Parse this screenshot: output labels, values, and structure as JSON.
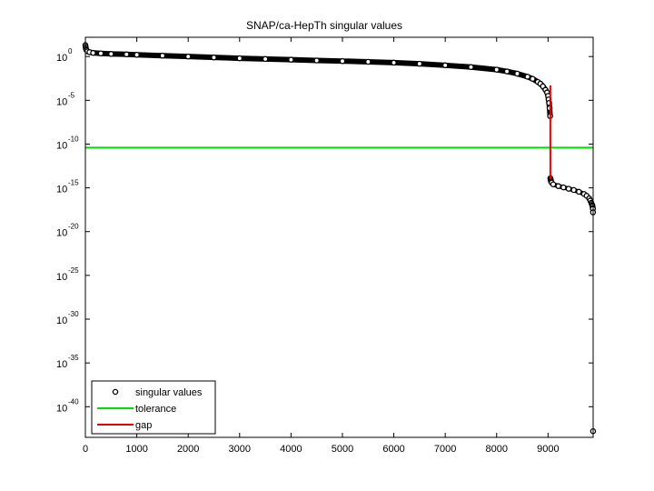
{
  "chart_data": {
    "type": "scatter",
    "title": "SNAP/ca-HepTh singular values",
    "xlabel": "",
    "ylabel": "",
    "y_scale": "log",
    "xlim": [
      0,
      9877
    ],
    "ylim_log10": [
      -43.5,
      2.2
    ],
    "x_ticks": [
      0,
      1000,
      2000,
      3000,
      4000,
      5000,
      6000,
      7000,
      8000,
      9000
    ],
    "y_ticks": [
      {
        "exp": 0,
        "base": "10",
        "label": "0"
      },
      {
        "exp": -5,
        "base": "10",
        "label": "-5"
      },
      {
        "exp": -10,
        "base": "10",
        "label": "-10"
      },
      {
        "exp": -15,
        "base": "10",
        "label": "-15"
      },
      {
        "exp": -20,
        "base": "10",
        "label": "-20"
      },
      {
        "exp": -25,
        "base": "10",
        "label": "-25"
      },
      {
        "exp": -30,
        "base": "10",
        "label": "-30"
      },
      {
        "exp": -35,
        "base": "10",
        "label": "-35"
      },
      {
        "exp": -40,
        "base": "10",
        "label": "-40"
      }
    ],
    "grid": false,
    "legend": {
      "position": "bottom-left",
      "entries": [
        {
          "label": "singular values",
          "marker": "circle",
          "color": "#000000"
        },
        {
          "label": "tolerance",
          "line": true,
          "color": "#00dd00"
        },
        {
          "label": "gap",
          "line": true,
          "color": "#ee0000"
        }
      ]
    },
    "series": [
      {
        "name": "singular values",
        "kind": "markers",
        "color": "#000000",
        "x": [
          0,
          5,
          10,
          20,
          40,
          80,
          150,
          300,
          500,
          800,
          1000,
          1500,
          2000,
          2500,
          3000,
          3500,
          4000,
          4500,
          5000,
          5500,
          6000,
          6500,
          7000,
          7500,
          8000,
          8200,
          8400,
          8600,
          8700,
          8800,
          8850,
          8900,
          8950,
          8980,
          9000,
          9010,
          9020,
          9030,
          9040,
          9045,
          9048,
          9050,
          9052,
          9055,
          9060,
          9070,
          9100,
          9200,
          9300,
          9400,
          9500,
          9600,
          9700,
          9750,
          9800,
          9820,
          9840,
          9850,
          9860,
          9865,
          9870,
          9872,
          9874,
          9876
        ],
        "log10_values": [
          1.3,
          1.1,
          0.9,
          0.75,
          0.6,
          0.5,
          0.42,
          0.36,
          0.3,
          0.25,
          0.2,
          0.1,
          0.0,
          -0.1,
          -0.2,
          -0.28,
          -0.36,
          -0.45,
          -0.52,
          -0.6,
          -0.7,
          -0.82,
          -1.0,
          -1.2,
          -1.5,
          -1.7,
          -1.95,
          -2.3,
          -2.55,
          -2.9,
          -3.1,
          -3.4,
          -3.8,
          -4.1,
          -4.5,
          -4.9,
          -5.3,
          -5.9,
          -6.8,
          -13.9,
          -14.0,
          -14.05,
          -14.1,
          -14.2,
          -14.3,
          -14.4,
          -14.6,
          -14.8,
          -14.95,
          -15.1,
          -15.25,
          -15.45,
          -15.7,
          -15.9,
          -16.2,
          -16.45,
          -16.7,
          -16.85,
          -17.0,
          -17.1,
          -17.3,
          -17.4,
          -17.8,
          -42.8
        ]
      },
      {
        "name": "tolerance",
        "kind": "hline",
        "color": "#00dd00",
        "log10_value": -10.4
      },
      {
        "name": "gap",
        "kind": "polyline",
        "color": "#ee0000",
        "x": [
          9044,
          9044,
          9045
        ],
        "log10_values": [
          -3.3,
          -3.3,
          -14.0
        ]
      }
    ]
  }
}
